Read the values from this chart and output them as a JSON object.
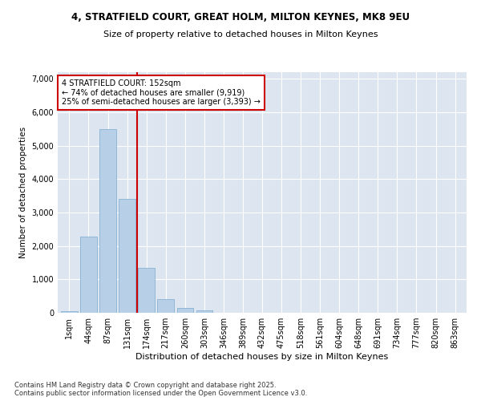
{
  "title1": "4, STRATFIELD COURT, GREAT HOLM, MILTON KEYNES, MK8 9EU",
  "title2": "Size of property relative to detached houses in Milton Keynes",
  "xlabel": "Distribution of detached houses by size in Milton Keynes",
  "ylabel": "Number of detached properties",
  "bar_color": "#b8cfe8",
  "bar_edge_color": "#7aaad0",
  "vline_color": "#cc0000",
  "vline_x": 3.5,
  "annotation_title": "4 STRATFIELD COURT: 152sqm",
  "annotation_line1": "← 74% of detached houses are smaller (9,919)",
  "annotation_line2": "25% of semi-detached houses are larger (3,393) →",
  "categories": [
    "1sqm",
    "44sqm",
    "87sqm",
    "131sqm",
    "174sqm",
    "217sqm",
    "260sqm",
    "303sqm",
    "346sqm",
    "389sqm",
    "432sqm",
    "475sqm",
    "518sqm",
    "561sqm",
    "604sqm",
    "648sqm",
    "691sqm",
    "734sqm",
    "777sqm",
    "820sqm",
    "863sqm"
  ],
  "values": [
    50,
    2280,
    5500,
    3400,
    1350,
    400,
    150,
    80,
    10,
    0,
    0,
    0,
    0,
    0,
    0,
    0,
    0,
    0,
    0,
    0,
    0
  ],
  "ylim": [
    0,
    7200
  ],
  "yticks": [
    0,
    1000,
    2000,
    3000,
    4000,
    5000,
    6000,
    7000
  ],
  "background_color": "#dde6f0",
  "footer1": "Contains HM Land Registry data © Crown copyright and database right 2025.",
  "footer2": "Contains public sector information licensed under the Open Government Licence v3.0."
}
